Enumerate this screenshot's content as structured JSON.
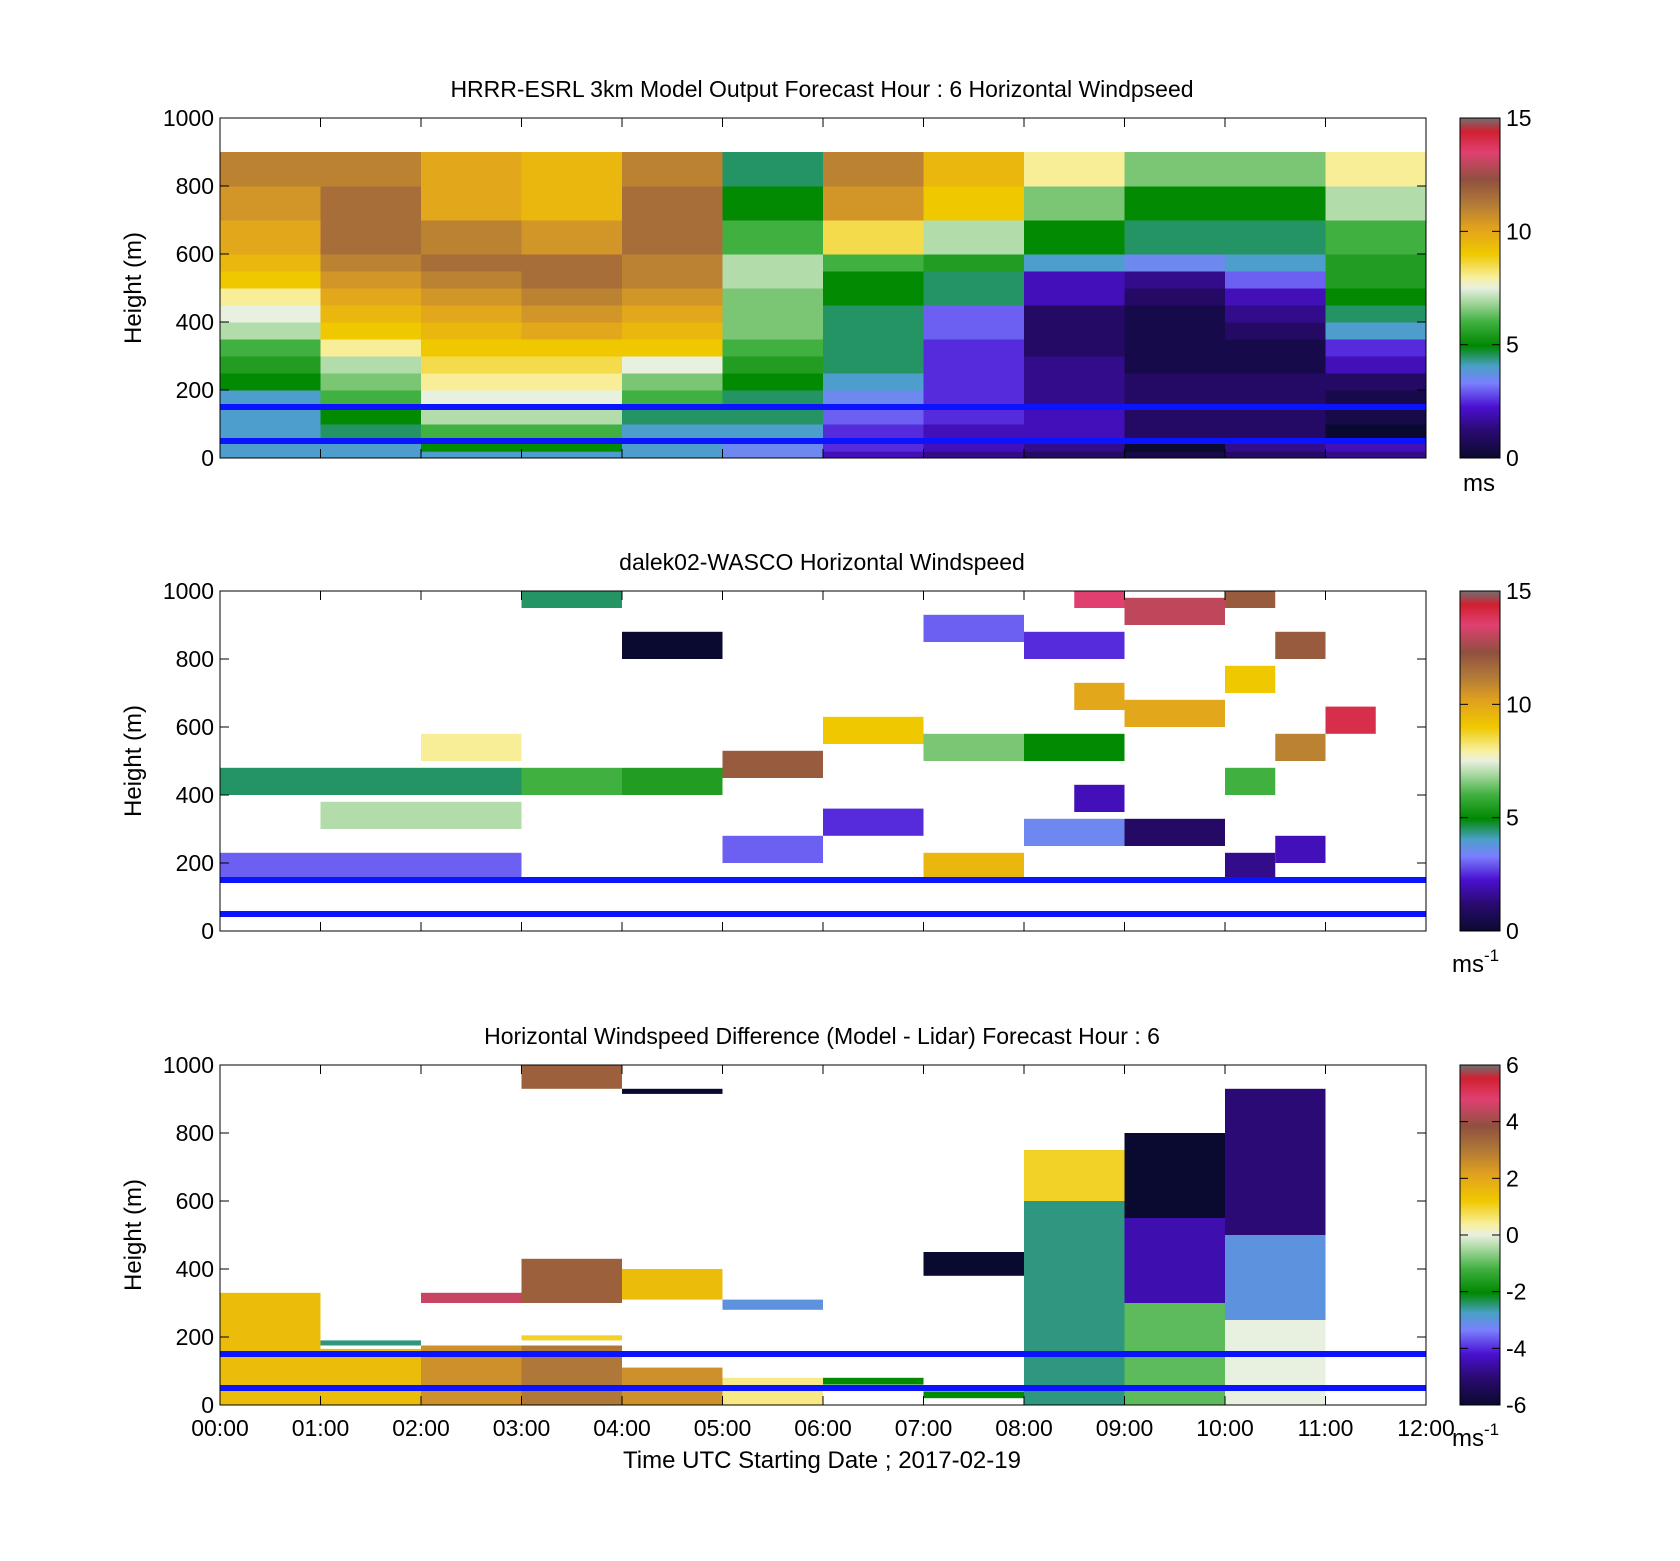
{
  "figure": {
    "xlabel": "Time UTC  Starting Date ; 2017-02-19",
    "x_tick_labels": [
      "00:00",
      "01:00",
      "02:00",
      "03:00",
      "04:00",
      "05:00",
      "06:00",
      "07:00",
      "08:00",
      "09:00",
      "10:00",
      "11:00",
      "12:00"
    ]
  },
  "chart_data": [
    {
      "type": "heatmap",
      "title": "HRRR-ESRL 3km Model Output   Forecast Hour : 6 Horizontal Windpseed",
      "ylabel": "Height (m)",
      "xlim": [
        "00:00",
        "12:00"
      ],
      "ylim": [
        0,
        1000
      ],
      "y_ticks": [
        0,
        200,
        400,
        600,
        800,
        1000
      ],
      "colorbar": {
        "min": 0,
        "max": 15,
        "ticks": [
          0,
          5,
          10,
          15
        ],
        "unit": "ms"
      },
      "reference_lines_m": [
        150,
        50
      ],
      "reference_line_color": "#0a14ff",
      "height_bins_m": [
        0,
        20,
        50,
        100,
        150,
        200,
        250,
        300,
        350,
        400,
        450,
        500,
        550,
        600,
        700,
        800,
        900,
        1000
      ],
      "time_columns": [
        "00:00",
        "01:00",
        "02:00",
        "03:00",
        "04:00",
        "05:00",
        "06:00",
        "07:00",
        "08:00",
        "09:00",
        "10:00",
        "11:00"
      ],
      "columns": [
        [
          4,
          4,
          4,
          4,
          4,
          5,
          5.5,
          6,
          7,
          7.5,
          8,
          9,
          9.5,
          10,
          10.5,
          11
        ],
        [
          4,
          4,
          4.5,
          5,
          6,
          6.5,
          7,
          8,
          9,
          9.5,
          10,
          10.5,
          11,
          11.5,
          11.5,
          11
        ],
        [
          4,
          5,
          6,
          7,
          7.5,
          8,
          8.5,
          9,
          9.5,
          10,
          10.5,
          11,
          11.5,
          11,
          10,
          10
        ],
        [
          4,
          5,
          6,
          7,
          7.5,
          8,
          8.5,
          9,
          10,
          10.5,
          11,
          11.5,
          11.5,
          10.5,
          9.5,
          9.5
        ],
        [
          4,
          4,
          4,
          4.5,
          6,
          6.5,
          7.5,
          9,
          9.5,
          10,
          10.5,
          11,
          11,
          11.5,
          11.5,
          11
        ],
        [
          3.5,
          3.5,
          4,
          4.5,
          4.5,
          5,
          5.5,
          6,
          6.5,
          6.5,
          6.5,
          7,
          7,
          6,
          5,
          4.5
        ],
        [
          2,
          2.5,
          2.5,
          3,
          3.5,
          4,
          4.5,
          4.5,
          4.5,
          4.5,
          5,
          5,
          6,
          8.5,
          10.5,
          11
        ],
        [
          1.5,
          2,
          2,
          2.5,
          2.5,
          2.5,
          2.5,
          2.5,
          3,
          3,
          4.5,
          4.5,
          5.5,
          7,
          9,
          9.5
        ],
        [
          1,
          1.5,
          2,
          2,
          1.5,
          1.5,
          1.5,
          1,
          1,
          1,
          2,
          2,
          4,
          5,
          6.5,
          8
        ],
        [
          0.5,
          0,
          1,
          1,
          1,
          1,
          0.5,
          0.5,
          0.5,
          0.5,
          1,
          1.5,
          3.5,
          4.5,
          5,
          6.5
        ],
        [
          1,
          1.5,
          1,
          1,
          1,
          1,
          0.5,
          0.5,
          1,
          1.5,
          2,
          3,
          4,
          4.5,
          5,
          6.5
        ],
        [
          1.5,
          2,
          0,
          0.5,
          0.5,
          1,
          2,
          2.5,
          4,
          4.5,
          5,
          5.5,
          5.5,
          6,
          7,
          8
        ]
      ]
    },
    {
      "type": "heatmap",
      "title": "dalek02-WASCO  Horizontal Windspeed",
      "ylabel": "Height (m)",
      "xlim": [
        "00:00",
        "12:00"
      ],
      "ylim": [
        0,
        1000
      ],
      "y_ticks": [
        0,
        200,
        400,
        600,
        800,
        1000
      ],
      "colorbar": {
        "min": 0,
        "max": 15,
        "ticks": [
          0,
          5,
          10,
          15
        ],
        "unit": "ms",
        "unit_exponent": "-1"
      },
      "reference_lines_m": [
        150,
        50
      ],
      "reference_line_color": "#0a14ff",
      "bins": [
        [
          "00:00",
          400,
          "03:00",
          4.5
        ],
        [
          "00:00",
          150,
          "03:00",
          3
        ],
        [
          "01:00",
          300,
          "03:00",
          7
        ],
        [
          "02:00",
          500,
          "03:00",
          8
        ],
        [
          "03:00",
          950,
          "04:00",
          4.5
        ],
        [
          "03:00",
          400,
          "04:00",
          6
        ],
        [
          "04:00",
          800,
          "05:00",
          0
        ],
        [
          "04:00",
          400,
          "05:00",
          5.5
        ],
        [
          "05:00",
          450,
          "06:00",
          12
        ],
        [
          "05:00",
          200,
          "06:00",
          3
        ],
        [
          "06:00",
          280,
          "07:00",
          2.5
        ],
        [
          "06:00",
          550,
          "07:00",
          9
        ],
        [
          "07:00",
          500,
          "08:00",
          6.5
        ],
        [
          "07:00",
          850,
          "08:00",
          3
        ],
        [
          "07:00",
          150,
          "08:00",
          9.5
        ],
        [
          "08:00",
          800,
          "09:00",
          2.5
        ],
        [
          "08:00",
          500,
          "09:00",
          5
        ],
        [
          "08:00",
          250,
          "09:00",
          3.5
        ],
        [
          "08:30",
          950,
          "09:00",
          13.5
        ],
        [
          "08:30",
          650,
          "09:00",
          10
        ],
        [
          "08:30",
          350,
          "09:00",
          2
        ],
        [
          "09:00",
          900,
          "10:00",
          13
        ],
        [
          "09:00",
          600,
          "10:00",
          10
        ],
        [
          "09:00",
          250,
          "10:00",
          1
        ],
        [
          "10:00",
          950,
          "10:30",
          12
        ],
        [
          "10:00",
          700,
          "10:30",
          9
        ],
        [
          "10:00",
          400,
          "10:30",
          6
        ],
        [
          "10:00",
          150,
          "10:30",
          1.5
        ],
        [
          "10:30",
          800,
          "11:00",
          12
        ],
        [
          "10:30",
          500,
          "11:00",
          11
        ],
        [
          "10:30",
          200,
          "11:00",
          2
        ],
        [
          "11:00",
          580,
          "11:30",
          14
        ]
      ]
    },
    {
      "type": "heatmap",
      "title": "Horizontal Windspeed Difference (Model - Lidar) Forecast Hour : 6",
      "ylabel": "Height (m)",
      "xlim": [
        "00:00",
        "12:00"
      ],
      "ylim": [
        0,
        1000
      ],
      "y_ticks": [
        0,
        200,
        400,
        600,
        800,
        1000
      ],
      "colorbar": {
        "min": -6,
        "max": 6,
        "ticks": [
          -6,
          -4,
          -2,
          0,
          2,
          4,
          6
        ],
        "unit": "ms",
        "unit_exponent": "-1"
      },
      "reference_lines_m": [
        150,
        50
      ],
      "reference_line_color": "#0a14ff",
      "bins": [
        [
          "00:00",
          0,
          "01:00",
          330,
          1.5
        ],
        [
          "01:00",
          0,
          "02:00",
          165,
          1.5
        ],
        [
          "01:00",
          175,
          "02:00",
          190,
          -2.5
        ],
        [
          "02:00",
          0,
          "03:00",
          175,
          2.5
        ],
        [
          "02:00",
          300,
          "03:00",
          330,
          4.5
        ],
        [
          "03:00",
          0,
          "04:00",
          175,
          3
        ],
        [
          "03:00",
          190,
          "04:00",
          205,
          1
        ],
        [
          "03:00",
          300,
          "04:00",
          430,
          3.5
        ],
        [
          "03:00",
          930,
          "04:00",
          1000,
          3.5
        ],
        [
          "04:00",
          0,
          "05:00",
          110,
          2.5
        ],
        [
          "04:00",
          310,
          "05:00",
          400,
          1.5
        ],
        [
          "04:00",
          915,
          "05:00",
          930,
          -6
        ],
        [
          "05:00",
          0,
          "06:00",
          80,
          0.5
        ],
        [
          "05:00",
          280,
          "06:00",
          310,
          -3
        ],
        [
          "06:00",
          60,
          "07:00",
          80,
          -2
        ],
        [
          "07:00",
          380,
          "08:00",
          450,
          -6
        ],
        [
          "07:00",
          20,
          "08:00",
          40,
          -2
        ],
        [
          "08:00",
          0,
          "09:00",
          600,
          -2.5
        ],
        [
          "08:00",
          600,
          "09:00",
          750,
          1
        ],
        [
          "09:00",
          0,
          "10:00",
          300,
          -1
        ],
        [
          "09:00",
          300,
          "10:00",
          550,
          -4.5
        ],
        [
          "09:00",
          550,
          "10:00",
          800,
          -6
        ],
        [
          "10:00",
          0,
          "11:00",
          250,
          0
        ],
        [
          "10:00",
          250,
          "11:00",
          500,
          -3
        ],
        [
          "10:00",
          500,
          "11:00",
          930,
          -5
        ]
      ]
    }
  ]
}
